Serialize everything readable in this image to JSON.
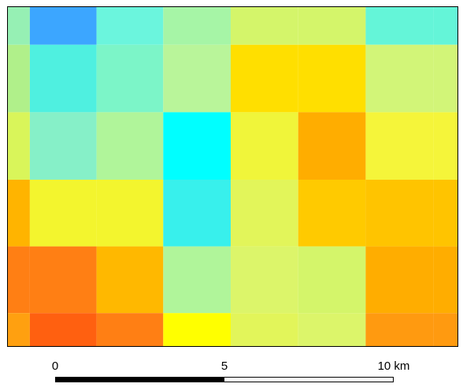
{
  "map": {
    "rows": 6,
    "cols": 7,
    "cell_colors": [
      [
        "#96f0b4",
        "#3ca6ff",
        "#6bf5dd",
        "#a6f5a6",
        "#d4f56a",
        "#d4f56a",
        "#64f5d8"
      ],
      [
        "#b0f08a",
        "#4ff0e0",
        "#7cf5c8",
        "#b9f59a",
        "#ffdf00",
        "#ffdf00",
        "#d2f578"
      ],
      [
        "#d9f55a",
        "#86f0c8",
        "#b0f59a",
        "#00ffff",
        "#f0f53a",
        "#ffad00",
        "#f5f53a"
      ],
      [
        "#ffb400",
        "#f3f52e",
        "#f3f52e",
        "#38f0ec",
        "#e2f55a",
        "#ffca00",
        "#ffc400"
      ],
      [
        "#ff7f14",
        "#ff7f14",
        "#ffb800",
        "#b0f59a",
        "#dcf56a",
        "#d4f56a",
        "#ffad00"
      ],
      [
        "#ffa010",
        "#ff6010",
        "#ff7f14",
        "#ffff00",
        "#e2f55a",
        "#dcf56a",
        "#ff9a10"
      ]
    ]
  },
  "scalebar": {
    "labels": [
      "0",
      "5",
      "10 km"
    ],
    "colors": {
      "dark": "#000000",
      "light": "#ffffff"
    },
    "segments": 2
  }
}
